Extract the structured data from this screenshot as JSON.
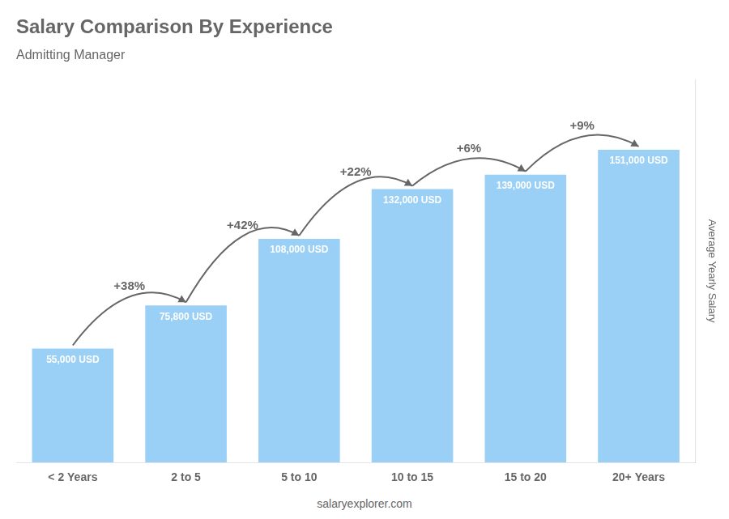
{
  "chart_data": {
    "type": "bar",
    "title": "Salary Comparison By Experience",
    "subtitle": "Admitting Manager",
    "ylabel": "Average Yearly Salary",
    "footer": "salaryexplorer.com",
    "categories": [
      "< 2 Years",
      "2 to 5",
      "5 to 10",
      "10 to 15",
      "15 to 20",
      "20+ Years"
    ],
    "values": [
      55000,
      75800,
      108000,
      132000,
      139000,
      151000
    ],
    "value_labels": [
      "55,000 USD",
      "75,800 USD",
      "108,000 USD",
      "132,000 USD",
      "139,000 USD",
      "151,000 USD"
    ],
    "data_labels": true,
    "annotations": [
      "+38%",
      "+42%",
      "+22%",
      "+6%",
      "+9%"
    ],
    "ylim": [
      0,
      185000
    ],
    "yticks": [],
    "tick_labels": "x",
    "grid": false
  }
}
